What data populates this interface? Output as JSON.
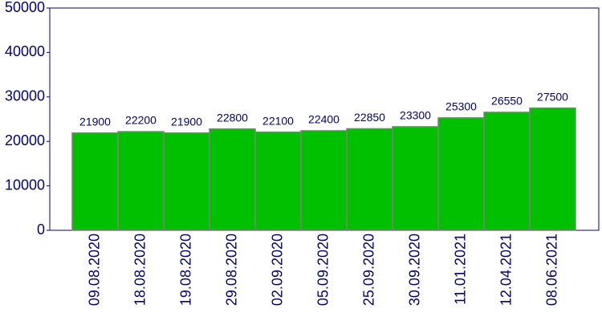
{
  "chart_data": {
    "type": "bar",
    "categories": [
      "09.08.2020",
      "18.08.2020",
      "19.08.2020",
      "29.08.2020",
      "02.09.2020",
      "05.09.2020",
      "25.09.2020",
      "30.09.2020",
      "11.01.2021",
      "12.04.2021",
      "08.06.2021"
    ],
    "values": [
      21900,
      22200,
      21900,
      22800,
      22100,
      22400,
      22850,
      23300,
      25300,
      26550,
      27500
    ],
    "color": "#00c000",
    "ylim": [
      0,
      50000
    ],
    "yticks": [
      0,
      10000,
      20000,
      30000,
      40000,
      50000
    ],
    "grid": false
  }
}
